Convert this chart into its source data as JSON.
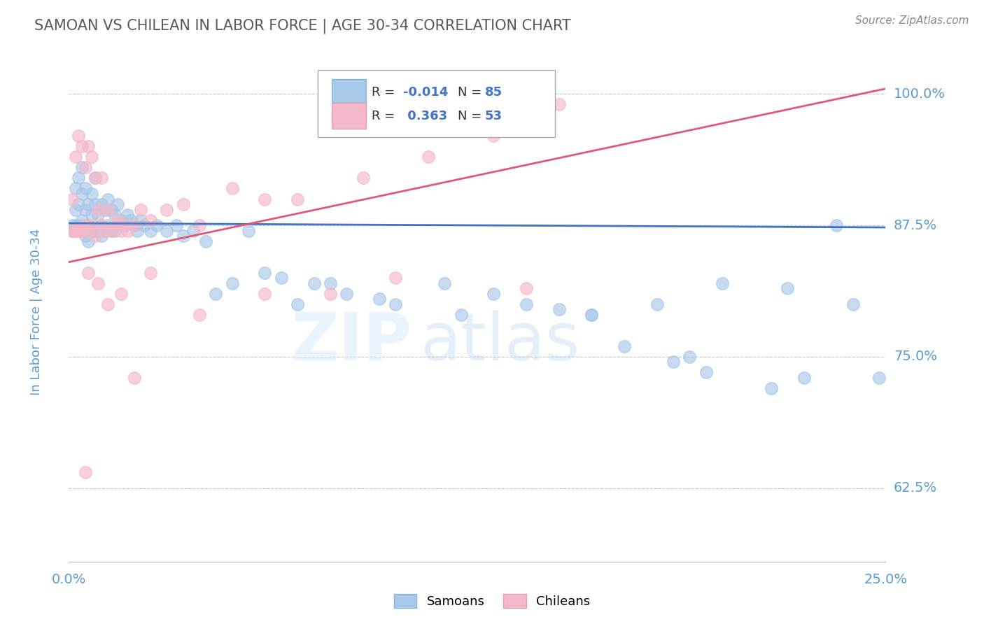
{
  "title": "SAMOAN VS CHILEAN IN LABOR FORCE | AGE 30-34 CORRELATION CHART",
  "source": "Source: ZipAtlas.com",
  "ylabel": "In Labor Force | Age 30-34",
  "xlim": [
    0.0,
    0.25
  ],
  "ylim": [
    0.555,
    1.03
  ],
  "xticks": [
    0.0,
    0.05,
    0.1,
    0.15,
    0.2,
    0.25
  ],
  "yticks": [
    0.625,
    0.75,
    0.875,
    1.0
  ],
  "ytick_labels": [
    "62.5%",
    "75.0%",
    "87.5%",
    "100.0%"
  ],
  "legend_label1": "Samoans",
  "legend_label2": "Chileans",
  "blue_color": "#a8c8e8",
  "pink_color": "#f4b8c8",
  "blue_line_color": "#4472c4",
  "pink_line_color": "#e05878",
  "background_color": "#ffffff",
  "grid_color": "#c8c8c8",
  "title_color": "#595959",
  "tick_label_color": "#5b9bd5",
  "blue_trend": [
    0.0,
    0.25,
    0.877,
    0.873
  ],
  "pink_trend": [
    0.0,
    0.25,
    0.84,
    1.005
  ],
  "blue_scatter_x": [
    0.001,
    0.001,
    0.002,
    0.002,
    0.002,
    0.003,
    0.003,
    0.003,
    0.004,
    0.004,
    0.004,
    0.004,
    0.005,
    0.005,
    0.005,
    0.005,
    0.006,
    0.006,
    0.006,
    0.007,
    0.007,
    0.007,
    0.008,
    0.008,
    0.008,
    0.009,
    0.009,
    0.01,
    0.01,
    0.01,
    0.011,
    0.011,
    0.012,
    0.012,
    0.013,
    0.013,
    0.014,
    0.014,
    0.015,
    0.015,
    0.016,
    0.017,
    0.018,
    0.019,
    0.02,
    0.021,
    0.022,
    0.023,
    0.025,
    0.027,
    0.03,
    0.033,
    0.035,
    0.038,
    0.042,
    0.05,
    0.06,
    0.07,
    0.085,
    0.1,
    0.12,
    0.14,
    0.16,
    0.18,
    0.2,
    0.22,
    0.24,
    0.17,
    0.19,
    0.185,
    0.195,
    0.215,
    0.225,
    0.16,
    0.075,
    0.055,
    0.045,
    0.15,
    0.13,
    0.115,
    0.095,
    0.08,
    0.065,
    0.248,
    0.235
  ],
  "blue_scatter_y": [
    0.875,
    0.87,
    0.91,
    0.89,
    0.875,
    0.92,
    0.895,
    0.875,
    0.93,
    0.905,
    0.88,
    0.87,
    0.91,
    0.89,
    0.875,
    0.865,
    0.895,
    0.875,
    0.86,
    0.905,
    0.885,
    0.87,
    0.92,
    0.895,
    0.87,
    0.885,
    0.87,
    0.895,
    0.875,
    0.865,
    0.89,
    0.87,
    0.9,
    0.875,
    0.89,
    0.87,
    0.885,
    0.87,
    0.895,
    0.875,
    0.88,
    0.875,
    0.885,
    0.88,
    0.875,
    0.87,
    0.88,
    0.875,
    0.87,
    0.875,
    0.87,
    0.875,
    0.865,
    0.87,
    0.86,
    0.82,
    0.83,
    0.8,
    0.81,
    0.8,
    0.79,
    0.8,
    0.79,
    0.8,
    0.82,
    0.815,
    0.8,
    0.76,
    0.75,
    0.745,
    0.735,
    0.72,
    0.73,
    0.79,
    0.82,
    0.87,
    0.81,
    0.795,
    0.81,
    0.82,
    0.805,
    0.82,
    0.825,
    0.73,
    0.875
  ],
  "pink_scatter_x": [
    0.001,
    0.001,
    0.002,
    0.002,
    0.003,
    0.003,
    0.004,
    0.004,
    0.005,
    0.005,
    0.006,
    0.006,
    0.007,
    0.007,
    0.008,
    0.008,
    0.009,
    0.01,
    0.01,
    0.011,
    0.012,
    0.013,
    0.014,
    0.015,
    0.016,
    0.017,
    0.018,
    0.02,
    0.022,
    0.025,
    0.03,
    0.035,
    0.04,
    0.05,
    0.06,
    0.07,
    0.09,
    0.11,
    0.13,
    0.15,
    0.003,
    0.006,
    0.009,
    0.012,
    0.016,
    0.025,
    0.04,
    0.06,
    0.08,
    0.1,
    0.14,
    0.005,
    0.02
  ],
  "pink_scatter_y": [
    0.9,
    0.87,
    0.94,
    0.87,
    0.96,
    0.87,
    0.95,
    0.87,
    0.93,
    0.875,
    0.95,
    0.87,
    0.94,
    0.875,
    0.92,
    0.865,
    0.89,
    0.92,
    0.875,
    0.87,
    0.89,
    0.87,
    0.875,
    0.88,
    0.87,
    0.875,
    0.87,
    0.875,
    0.89,
    0.88,
    0.89,
    0.895,
    0.875,
    0.91,
    0.9,
    0.9,
    0.92,
    0.94,
    0.96,
    0.99,
    0.87,
    0.83,
    0.82,
    0.8,
    0.81,
    0.83,
    0.79,
    0.81,
    0.81,
    0.825,
    0.815,
    0.64,
    0.73
  ]
}
